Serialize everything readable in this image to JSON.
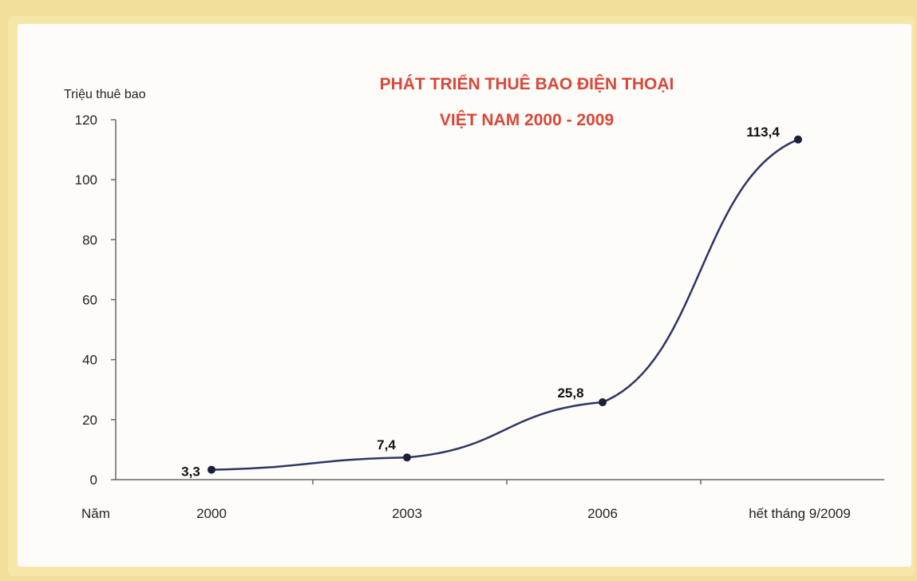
{
  "chart_data": {
    "type": "line",
    "title_line1": "PHÁT TRIỂN THUÊ BAO ĐIỆN THOẠI",
    "title_line2": "VIỆT NAM  2000 - 2009",
    "ylabel": "Triệu thuê bao",
    "xlabel": "Năm",
    "ylim": [
      0,
      120
    ],
    "yticks": [
      "0",
      "20",
      "40",
      "60",
      "80",
      "100",
      "120"
    ],
    "categories": [
      "2000",
      "2003",
      "2006",
      "hết tháng 9/2009"
    ],
    "values": [
      3.3,
      7.4,
      25.8,
      113.4
    ],
    "data_labels": [
      "3,3",
      "7,4",
      "25,8",
      "113,4"
    ],
    "grid": false,
    "colors": {
      "title": "#d9473a",
      "line": "#2f3565",
      "marker": "#1a1f3a"
    }
  }
}
